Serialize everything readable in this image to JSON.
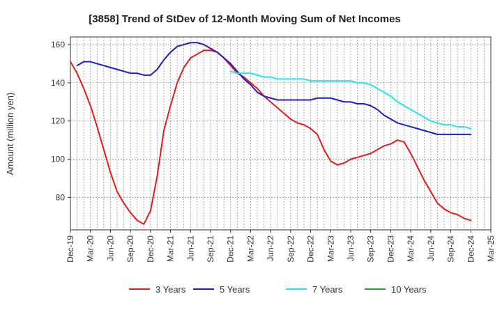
{
  "chart_data": {
    "type": "line",
    "title": "[3858]  Trend of StDev of 12-Month Moving Sum of Net Incomes",
    "xlabel": "",
    "ylabel": "Amount (million yen)",
    "x_ticks": [
      "Dec-19",
      "Mar-20",
      "Jun-20",
      "Sep-20",
      "Dec-20",
      "Mar-21",
      "Jun-21",
      "Sep-21",
      "Dec-21",
      "Mar-22",
      "Jun-22",
      "Sep-22",
      "Dec-22",
      "Mar-23",
      "Jun-23",
      "Sep-23",
      "Dec-23",
      "Mar-24",
      "Jun-24",
      "Sep-24",
      "Dec-24",
      "Mar-25"
    ],
    "y_ticks": [
      80,
      100,
      120,
      140,
      160
    ],
    "ylim": [
      63,
      164
    ],
    "grid": true,
    "legend_position": "bottom",
    "x_unit": "months since Dec-19",
    "series": [
      {
        "name": "3 Years",
        "color": "#e41a1c",
        "points": [
          [
            0,
            151
          ],
          [
            1,
            145
          ],
          [
            2,
            137
          ],
          [
            3,
            128
          ],
          [
            4,
            117
          ],
          [
            5,
            105
          ],
          [
            6,
            93
          ],
          [
            7,
            83
          ],
          [
            8,
            77
          ],
          [
            9,
            72
          ],
          [
            10,
            68
          ],
          [
            11,
            66
          ],
          [
            12,
            73
          ],
          [
            13,
            91
          ],
          [
            14,
            115
          ],
          [
            15,
            128
          ],
          [
            16,
            140
          ],
          [
            17,
            148
          ],
          [
            18,
            153
          ],
          [
            19,
            155
          ],
          [
            20,
            157
          ],
          [
            21,
            157
          ],
          [
            22,
            156
          ],
          [
            23,
            153
          ],
          [
            24,
            149
          ],
          [
            25,
            145
          ],
          [
            26,
            143
          ],
          [
            27,
            140
          ],
          [
            28,
            137
          ],
          [
            29,
            133
          ],
          [
            30,
            130
          ],
          [
            31,
            127
          ],
          [
            32,
            124
          ],
          [
            33,
            121
          ],
          [
            34,
            119
          ],
          [
            35,
            118
          ],
          [
            36,
            116
          ],
          [
            37,
            113
          ],
          [
            38,
            105
          ],
          [
            39,
            99
          ],
          [
            40,
            97
          ],
          [
            41,
            98
          ],
          [
            42,
            100
          ],
          [
            43,
            101
          ],
          [
            44,
            102
          ],
          [
            45,
            103
          ],
          [
            46,
            105
          ],
          [
            47,
            107
          ],
          [
            48,
            108
          ],
          [
            49,
            110
          ],
          [
            50,
            109
          ],
          [
            51,
            103
          ],
          [
            52,
            96
          ],
          [
            53,
            89
          ],
          [
            54,
            83
          ],
          [
            55,
            77
          ],
          [
            56,
            74
          ],
          [
            57,
            72
          ],
          [
            58,
            71
          ],
          [
            59,
            69
          ],
          [
            60,
            68
          ]
        ]
      },
      {
        "name": "5 Years",
        "color": "#1f1fbf",
        "points": [
          [
            1,
            149
          ],
          [
            2,
            151
          ],
          [
            3,
            151
          ],
          [
            4,
            150
          ],
          [
            5,
            149
          ],
          [
            6,
            148
          ],
          [
            7,
            147
          ],
          [
            8,
            146
          ],
          [
            9,
            145
          ],
          [
            10,
            145
          ],
          [
            11,
            144
          ],
          [
            12,
            144
          ],
          [
            13,
            147
          ],
          [
            14,
            152
          ],
          [
            15,
            156
          ],
          [
            16,
            159
          ],
          [
            17,
            160
          ],
          [
            18,
            161
          ],
          [
            19,
            161
          ],
          [
            20,
            160
          ],
          [
            21,
            158
          ],
          [
            22,
            156
          ],
          [
            23,
            153
          ],
          [
            24,
            150
          ],
          [
            25,
            146
          ],
          [
            26,
            142
          ],
          [
            27,
            139
          ],
          [
            28,
            135
          ],
          [
            29,
            133
          ],
          [
            30,
            132
          ],
          [
            31,
            131
          ],
          [
            32,
            131
          ],
          [
            33,
            131
          ],
          [
            34,
            131
          ],
          [
            35,
            131
          ],
          [
            36,
            131
          ],
          [
            37,
            132
          ],
          [
            38,
            132
          ],
          [
            39,
            132
          ],
          [
            40,
            131
          ],
          [
            41,
            130
          ],
          [
            42,
            130
          ],
          [
            43,
            129
          ],
          [
            44,
            129
          ],
          [
            45,
            128
          ],
          [
            46,
            126
          ],
          [
            47,
            123
          ],
          [
            48,
            121
          ],
          [
            49,
            119
          ],
          [
            50,
            118
          ],
          [
            51,
            117
          ],
          [
            52,
            116
          ],
          [
            53,
            115
          ],
          [
            54,
            114
          ],
          [
            55,
            113
          ],
          [
            56,
            113
          ],
          [
            57,
            113
          ],
          [
            58,
            113
          ],
          [
            59,
            113
          ],
          [
            60,
            113
          ]
        ]
      },
      {
        "name": "7 Years",
        "color": "#22e5ee",
        "points": [
          [
            24,
            146
          ],
          [
            25,
            145
          ],
          [
            26,
            145
          ],
          [
            27,
            145
          ],
          [
            28,
            144
          ],
          [
            29,
            143
          ],
          [
            30,
            143
          ],
          [
            31,
            142
          ],
          [
            32,
            142
          ],
          [
            33,
            142
          ],
          [
            34,
            142
          ],
          [
            35,
            142
          ],
          [
            36,
            141
          ],
          [
            37,
            141
          ],
          [
            38,
            141
          ],
          [
            39,
            141
          ],
          [
            40,
            141
          ],
          [
            41,
            141
          ],
          [
            42,
            141
          ],
          [
            43,
            140
          ],
          [
            44,
            140
          ],
          [
            45,
            139
          ],
          [
            46,
            137
          ],
          [
            47,
            135
          ],
          [
            48,
            133
          ],
          [
            49,
            130
          ],
          [
            50,
            128
          ],
          [
            51,
            126
          ],
          [
            52,
            124
          ],
          [
            53,
            122
          ],
          [
            54,
            120
          ],
          [
            55,
            119
          ],
          [
            56,
            118
          ],
          [
            57,
            118
          ],
          [
            58,
            117
          ],
          [
            59,
            117
          ],
          [
            60,
            116
          ]
        ]
      },
      {
        "name": "10 Years",
        "color": "#2ca02c",
        "points": []
      }
    ]
  }
}
